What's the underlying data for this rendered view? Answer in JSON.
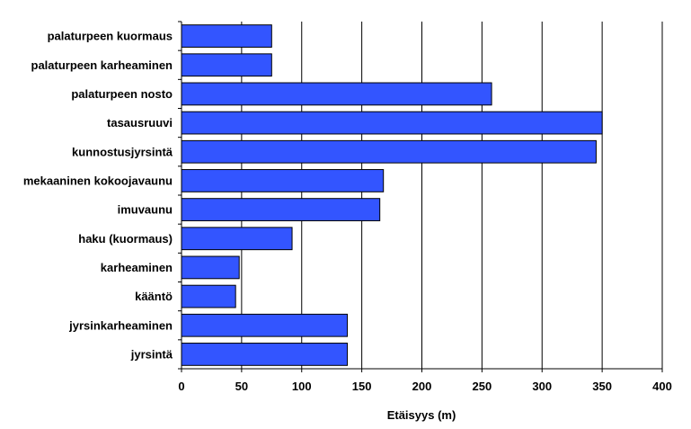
{
  "chart_data": {
    "type": "bar",
    "orientation": "horizontal",
    "categories": [
      "palaturpeen kuormaus",
      "palaturpeen karheaminen",
      "palaturpeen nosto",
      "tasausruuvi",
      "kunnostusjyrsintä",
      "mekaaninen kokoojavaunu",
      "imuvaunu",
      "haku (kuormaus)",
      "karheaminen",
      "kääntö",
      "jyrsinkarheaminen",
      "jyrsintä"
    ],
    "values": [
      75,
      75,
      258,
      350,
      345,
      168,
      165,
      92,
      48,
      45,
      138,
      138
    ],
    "xlabel": "Etäisyys (m)",
    "ylabel": "",
    "title": "",
    "xlim": [
      0,
      400
    ],
    "xticks": [
      0,
      50,
      100,
      150,
      200,
      250,
      300,
      350,
      400
    ],
    "grid": "vertical",
    "legend": "none",
    "colors": {
      "bar": "#3355ff",
      "bar_stroke": "#000000",
      "grid": "#000000"
    }
  }
}
